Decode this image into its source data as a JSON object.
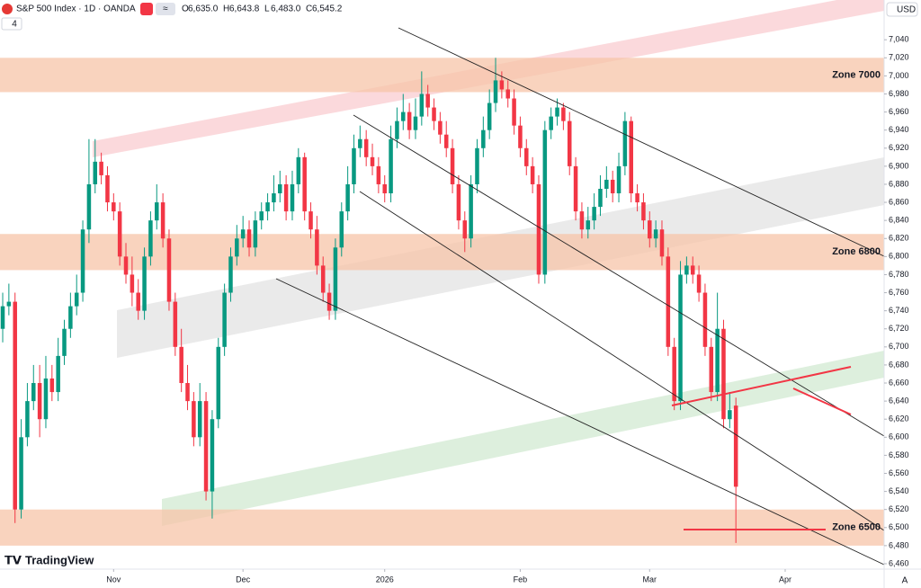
{
  "chart_data": {
    "type": "candlestick",
    "title": "S&P 500 Index · 1D · OANDA",
    "legend_ohlc": [
      {
        "key": "O",
        "value": "6,635.0"
      },
      {
        "key": "H",
        "value": "6,643.8"
      },
      {
        "key": "L",
        "value": "6,483.0"
      },
      {
        "key": "C",
        "value": "6,545.2"
      }
    ],
    "indicator_count": 4,
    "currency": "USD",
    "brand": "TradingView",
    "scale_mode": "A",
    "up_color": "#089981",
    "down_color": "#f23645",
    "open": [
      6720,
      6745,
      6750,
      6520,
      6600,
      6640,
      6660,
      6620,
      6665,
      6650,
      6690,
      6720,
      6745,
      6760,
      6830,
      6880,
      6905,
      6890,
      6860,
      6850,
      6800,
      6780,
      6760,
      6740,
      6800,
      6840,
      6860,
      6820,
      6750,
      6700,
      6660,
      6640,
      6600,
      6640,
      6540,
      6620,
      6700,
      6760,
      6800,
      6820,
      6830,
      6810,
      6840,
      6850,
      6860,
      6870,
      6880,
      6850,
      6880,
      6910,
      6850,
      6830,
      6790,
      6760,
      6740,
      6810,
      6850,
      6880,
      6920,
      6930,
      6910,
      6900,
      6880,
      6870,
      6930,
      6950,
      6960,
      6940,
      6955,
      6980,
      6965,
      6950,
      6935,
      6920,
      6880,
      6840,
      6820,
      6880,
      6920,
      6940,
      6970,
      6995,
      6985,
      6975,
      6945,
      6920,
      6900,
      6880,
      6780,
      6940,
      6955,
      6965,
      6950,
      6900,
      6850,
      6830,
      6840,
      6855,
      6875,
      6885,
      6870,
      6900,
      6950,
      6870,
      6860,
      6840,
      6820,
      6830,
      6800,
      6700,
      6640,
      6780,
      6790,
      6780,
      6760,
      6700,
      6650,
      6720,
      6620,
      6635
    ],
    "high": [
      6760,
      6770,
      6760,
      6620,
      6660,
      6680,
      6680,
      6690,
      6680,
      6710,
      6730,
      6760,
      6780,
      6840,
      6930,
      6930,
      6915,
      6900,
      6870,
      6860,
      6815,
      6800,
      6775,
      6810,
      6850,
      6880,
      6870,
      6830,
      6760,
      6720,
      6680,
      6650,
      6660,
      6650,
      6630,
      6710,
      6770,
      6810,
      6835,
      6845,
      6840,
      6850,
      6860,
      6870,
      6890,
      6895,
      6890,
      6895,
      6920,
      6915,
      6860,
      6845,
      6800,
      6770,
      6820,
      6860,
      6900,
      6935,
      6945,
      6940,
      6925,
      6910,
      6890,
      6945,
      6965,
      6980,
      6970,
      6975,
      7005,
      6990,
      6975,
      6960,
      6950,
      6930,
      6890,
      6850,
      6890,
      6930,
      6955,
      6985,
      7020,
      7005,
      6995,
      6985,
      6955,
      6930,
      6910,
      6890,
      6950,
      6965,
      6975,
      6970,
      6960,
      6910,
      6860,
      6855,
      6870,
      6890,
      6900,
      6895,
      6915,
      6960,
      6955,
      6880,
      6870,
      6850,
      6840,
      6840,
      6810,
      6710,
      6795,
      6800,
      6800,
      6790,
      6770,
      6710,
      6760,
      6730,
      6650,
      6643.8
    ],
    "low": [
      6705,
      6735,
      6505,
      6510,
      6590,
      6630,
      6600,
      6610,
      6640,
      6640,
      6680,
      6710,
      6735,
      6750,
      6815,
      6870,
      6880,
      6850,
      6840,
      6790,
      6770,
      6745,
      6730,
      6730,
      6790,
      6830,
      6810,
      6740,
      6690,
      6650,
      6630,
      6590,
      6590,
      6530,
      6510,
      6610,
      6690,
      6750,
      6790,
      6810,
      6800,
      6800,
      6830,
      6840,
      6850,
      6860,
      6840,
      6840,
      6870,
      6840,
      6820,
      6780,
      6750,
      6730,
      6730,
      6800,
      6840,
      6870,
      6910,
      6900,
      6890,
      6870,
      6860,
      6860,
      6920,
      6940,
      6930,
      6930,
      6945,
      6955,
      6940,
      6925,
      6910,
      6870,
      6830,
      6805,
      6810,
      6870,
      6910,
      6930,
      6960,
      6975,
      6965,
      6935,
      6910,
      6890,
      6870,
      6770,
      6770,
      6930,
      6945,
      6940,
      6890,
      6840,
      6820,
      6820,
      6830,
      6845,
      6865,
      6860,
      6860,
      6890,
      6860,
      6850,
      6830,
      6810,
      6810,
      6790,
      6690,
      6630,
      6630,
      6770,
      6770,
      6750,
      6690,
      6640,
      6640,
      6610,
      6610,
      6483
    ],
    "close": [
      6745,
      6750,
      6520,
      6600,
      6640,
      6660,
      6620,
      6665,
      6650,
      6690,
      6720,
      6745,
      6760,
      6830,
      6880,
      6905,
      6890,
      6860,
      6850,
      6800,
      6780,
      6760,
      6740,
      6800,
      6840,
      6860,
      6820,
      6750,
      6700,
      6660,
      6640,
      6600,
      6640,
      6540,
      6620,
      6700,
      6760,
      6800,
      6820,
      6830,
      6810,
      6840,
      6850,
      6860,
      6870,
      6880,
      6850,
      6880,
      6910,
      6850,
      6830,
      6790,
      6760,
      6740,
      6810,
      6850,
      6880,
      6920,
      6930,
      6910,
      6900,
      6880,
      6870,
      6930,
      6950,
      6960,
      6940,
      6955,
      6980,
      6965,
      6950,
      6935,
      6920,
      6880,
      6840,
      6820,
      6880,
      6920,
      6940,
      6970,
      6995,
      6985,
      6975,
      6945,
      6920,
      6900,
      6880,
      6780,
      6940,
      6955,
      6965,
      6950,
      6900,
      6850,
      6830,
      6840,
      6855,
      6875,
      6885,
      6870,
      6900,
      6950,
      6870,
      6860,
      6840,
      6820,
      6830,
      6800,
      6700,
      6640,
      6780,
      6790,
      6780,
      6760,
      6700,
      6650,
      6720,
      6620,
      6630,
      6545.2
    ],
    "xlim": [
      -0.44,
      143.06
    ],
    "xticks": [
      {
        "value": 18,
        "label": "Nov"
      },
      {
        "value": 39,
        "label": "Dec"
      },
      {
        "value": 62,
        "label": "2026"
      },
      {
        "value": 84,
        "label": "Feb"
      },
      {
        "value": 105,
        "label": "Mar"
      },
      {
        "value": 127,
        "label": "Apr"
      }
    ],
    "ylim": [
      6454,
      7084
    ],
    "yticks": [
      {
        "value": 6460,
        "label": "6,460"
      },
      {
        "value": 6480,
        "label": "6,480"
      },
      {
        "value": 6500,
        "label": "6,500"
      },
      {
        "value": 6520,
        "label": "6,520"
      },
      {
        "value": 6540,
        "label": "6,540"
      },
      {
        "value": 6560,
        "label": "6,560"
      },
      {
        "value": 6580,
        "label": "6,580"
      },
      {
        "value": 6600,
        "label": "6,600"
      },
      {
        "value": 6620,
        "label": "6,620"
      },
      {
        "value": 6640,
        "label": "6,640"
      },
      {
        "value": 6660,
        "label": "6,660"
      },
      {
        "value": 6680,
        "label": "6,680"
      },
      {
        "value": 6700,
        "label": "6,700"
      },
      {
        "value": 6720,
        "label": "6,720"
      },
      {
        "value": 6740,
        "label": "6,740"
      },
      {
        "value": 6760,
        "label": "6,760"
      },
      {
        "value": 6780,
        "label": "6,780"
      },
      {
        "value": 6800,
        "label": "6,800"
      },
      {
        "value": 6820,
        "label": "6,820"
      },
      {
        "value": 6840,
        "label": "6,840"
      },
      {
        "value": 6860,
        "label": "6,860"
      },
      {
        "value": 6880,
        "label": "6,880"
      },
      {
        "value": 6900,
        "label": "6,900"
      },
      {
        "value": 6920,
        "label": "6,920"
      },
      {
        "value": 6940,
        "label": "6,940"
      },
      {
        "value": 6960,
        "label": "6,960"
      },
      {
        "value": 6980,
        "label": "6,980"
      },
      {
        "value": 7000,
        "label": "7,000"
      },
      {
        "value": 7020,
        "label": "7,020"
      },
      {
        "value": 7040,
        "label": "7,040"
      }
    ],
    "zones": [
      {
        "label": "Zone 7000",
        "range": [
          6982,
          7020
        ]
      },
      {
        "label": "Zone 6800",
        "range": [
          6785,
          6825
        ]
      },
      {
        "label": "Zone 6500",
        "range": [
          6480,
          6520
        ]
      }
    ],
    "zone_color": "#f7c4a8"
  }
}
